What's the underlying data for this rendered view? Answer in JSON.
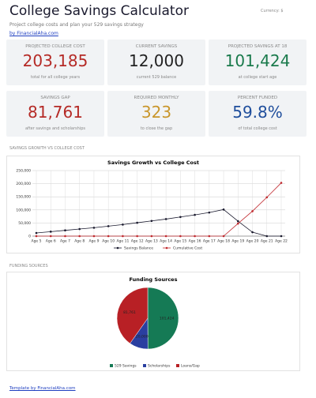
{
  "header": {
    "title": "College Savings Calculator",
    "currency": "Currency: $",
    "subtitle": "Project college costs and plan your 529 savings strategy",
    "link": "by FinancialAha.com"
  },
  "cards": [
    {
      "label": "PROJECTED COLLEGE COST",
      "value": "203,185",
      "note": "total for all college years",
      "color": "#b52a26"
    },
    {
      "label": "CURRENT SAVINGS",
      "value": "12,000",
      "note": "current 529 balance",
      "color": "#222222"
    },
    {
      "label": "PROJECTED SAVINGS AT 18",
      "value": "101,424",
      "note": "at college start age",
      "color": "#1a7a4c"
    },
    {
      "label": "SAVINGS GAP",
      "value": "81,761",
      "note": "after savings and scholarships",
      "color": "#b52a26"
    },
    {
      "label": "REQUIRED MONTHLY",
      "value": "323",
      "note": "to close the gap",
      "color": "#c9962b"
    },
    {
      "label": "PERCENT FUNDED",
      "value": "59.8%",
      "note": "of total college cost",
      "color": "#1f4e9c"
    }
  ],
  "sections": [
    "SAVINGS GROWTH VS COLLEGE COST",
    "FUNDING SOURCES"
  ],
  "growth_chart": {
    "type": "line",
    "title": "Savings Growth vs College Cost",
    "categories": [
      "Age 5",
      "Age 6",
      "Age 7",
      "Age 8",
      "Age 9",
      "Age 10",
      "Age 11",
      "Age 12",
      "Age 13",
      "Age 14",
      "Age 15",
      "Age 16",
      "Age 17",
      "Age 18",
      "Age 19",
      "Age 20",
      "Age 21",
      "Age 22"
    ],
    "series": [
      {
        "name": "Savings Balance",
        "color": "#1a1a2e",
        "values": [
          12000,
          17000,
          22000,
          27000,
          32000,
          38000,
          44000,
          51000,
          58000,
          65000,
          73000,
          81000,
          90000,
          101424,
          57000,
          15000,
          0,
          0
        ]
      },
      {
        "name": "Cumulative Cost",
        "color": "#c0282d",
        "values": [
          0,
          0,
          0,
          0,
          0,
          0,
          0,
          0,
          0,
          0,
          0,
          0,
          0,
          0,
          48000,
          95000,
          148000,
          203185
        ]
      }
    ],
    "ylim": [
      0,
      250000
    ],
    "yticks": [
      0,
      {
        "value": 50000,
        "label": "50,000"
      },
      {
        "value": 100000,
        "label": "100,000"
      },
      {
        "value": 150000,
        "label": "150,000"
      },
      {
        "value": 200000,
        "label": "200,000"
      },
      {
        "value": 250000,
        "label": "250,000"
      }
    ],
    "grid": true
  },
  "funding_chart": {
    "type": "pie",
    "title": "Funding Sources",
    "categories": [
      "529 Savings",
      "Scholarships",
      "Loans/Gap"
    ],
    "values": [
      101424,
      20000,
      81761
    ],
    "value_labels": [
      "101,424",
      "20,000",
      "81,761"
    ],
    "colors": [
      "#157a55",
      "#2a3fa0",
      "#b82025"
    ]
  },
  "footer": {
    "link": "Template by FinancialAha.com"
  }
}
